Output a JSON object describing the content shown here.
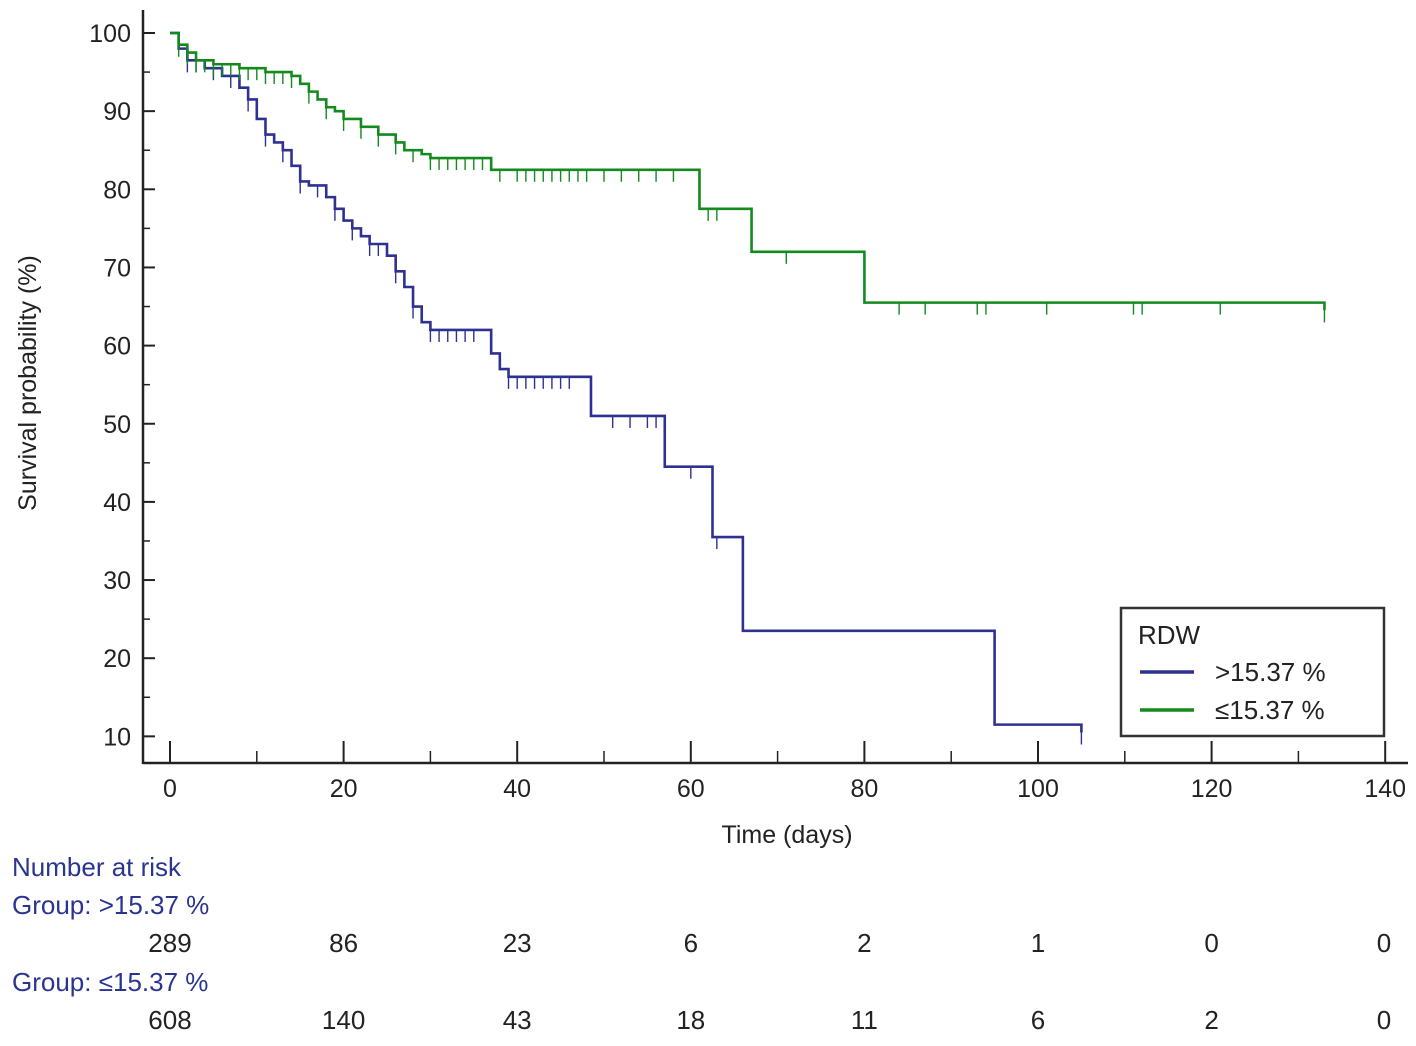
{
  "chart_data": {
    "type": "line",
    "subtype": "kaplan-meier",
    "title": "",
    "xlabel": "Time (days)",
    "ylabel": "Survival probability (%)",
    "xlim": [
      0,
      140
    ],
    "ylim": [
      10,
      100
    ],
    "x_ticks": [
      0,
      20,
      40,
      60,
      80,
      100,
      120,
      140
    ],
    "y_ticks": [
      10,
      20,
      30,
      40,
      50,
      60,
      70,
      80,
      90,
      100
    ],
    "legend": {
      "title": "RDW",
      "position": "bottom-right",
      "entries": [
        ">15.37 %",
        "≤15.37 %"
      ]
    },
    "series": [
      {
        "name": ">15.37 %",
        "color": "#2e3192",
        "x": [
          0,
          1,
          2,
          4,
          6,
          8,
          9,
          10,
          11,
          12,
          13,
          14,
          15,
          16,
          18,
          19,
          20,
          21,
          22,
          23,
          25,
          26,
          27,
          28,
          29,
          30,
          37,
          38,
          39,
          48.5,
          57,
          62.5,
          66,
          95,
          105
        ],
        "y": [
          100,
          98,
          96.5,
          95.5,
          94.5,
          93,
          91.5,
          89,
          87,
          86,
          85,
          83,
          81,
          80.5,
          79,
          77.5,
          76,
          75,
          74,
          73,
          71.5,
          69.5,
          67.5,
          65,
          63,
          62,
          59,
          57,
          56,
          51,
          44.5,
          35.5,
          23.5,
          11.5,
          10.5
        ],
        "censor_x": [
          2,
          3,
          5,
          7,
          9,
          11,
          13,
          15,
          17,
          19,
          21,
          23,
          24,
          26,
          28,
          30,
          31,
          32,
          33,
          34,
          35,
          39,
          40,
          41,
          42,
          43,
          44,
          45,
          46,
          51,
          53,
          55,
          56,
          60,
          63,
          105
        ]
      },
      {
        "name": "≤15.37 %",
        "color": "#138a1e",
        "x": [
          0,
          1,
          2,
          3,
          5,
          8,
          11,
          14,
          15,
          16,
          17,
          18,
          19,
          20,
          22,
          24,
          26,
          27,
          29,
          30,
          37,
          61,
          67,
          80,
          133
        ],
        "y": [
          100,
          98.5,
          97.5,
          96.5,
          96,
          95.5,
          95,
          94.5,
          93.5,
          92.5,
          91.5,
          90.5,
          90,
          89,
          88,
          87,
          86,
          85,
          84.5,
          84,
          82.5,
          77.5,
          72,
          65.5,
          64.5
        ],
        "censor_x": [
          1,
          2,
          3,
          4,
          5,
          6,
          7,
          8,
          9,
          10,
          11,
          12,
          13,
          14,
          16,
          18,
          20,
          22,
          24,
          26,
          28,
          30,
          31,
          32,
          33,
          34,
          35,
          36,
          38,
          40,
          41,
          42,
          43,
          44,
          45,
          46,
          47,
          48,
          50,
          52,
          54,
          56,
          58,
          62,
          63,
          71,
          84,
          87,
          93,
          94,
          101,
          111,
          112,
          121,
          133
        ]
      }
    ],
    "risk_table": {
      "title": "Number at risk",
      "time_points": [
        0,
        20,
        40,
        60,
        80,
        100,
        120,
        140
      ],
      "groups": [
        {
          "label": "Group: >15.37 %",
          "counts": [
            "289",
            "86",
            "23",
            "6",
            "2",
            "1",
            "0",
            "0"
          ]
        },
        {
          "label": "Group: ≤15.37 %",
          "counts": [
            "608",
            "140",
            "43",
            "18",
            "11",
            "6",
            "2",
            "0"
          ]
        }
      ]
    }
  }
}
